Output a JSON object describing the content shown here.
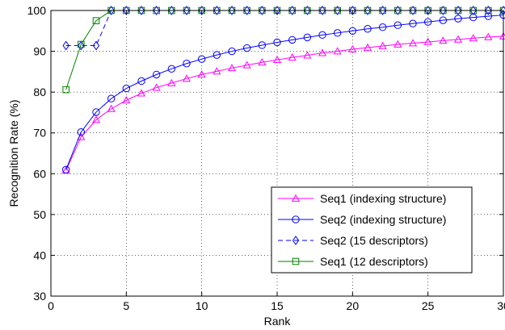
{
  "chart_data": {
    "type": "line",
    "xlabel": "Rank",
    "ylabel": "Recognition Rate (%)",
    "xlim": [
      0,
      30
    ],
    "ylim": [
      30,
      100
    ],
    "xticks": [
      "0",
      "5",
      "10",
      "15",
      "20",
      "25",
      "30"
    ],
    "yticks": [
      "30",
      "40",
      "50",
      "60",
      "70",
      "80",
      "90",
      "100"
    ],
    "grid": true,
    "legend_position": "lower-right",
    "series": [
      {
        "name": "Seq1 (indexing structure)",
        "color": "#ff00ff",
        "marker": "triangle",
        "line": "solid",
        "x": [
          1,
          2,
          3,
          4,
          5,
          6,
          7,
          8,
          9,
          10,
          11,
          12,
          13,
          14,
          15,
          16,
          17,
          18,
          19,
          20,
          21,
          22,
          23,
          24,
          25,
          26,
          27,
          28,
          29,
          30
        ],
        "values": [
          60.8,
          69.0,
          73.2,
          75.9,
          78.0,
          79.7,
          81.1,
          82.2,
          83.3,
          84.3,
          85.1,
          85.9,
          86.6,
          87.3,
          87.9,
          88.5,
          89.0,
          89.6,
          90.0,
          90.5,
          90.9,
          91.3,
          91.7,
          92.0,
          92.3,
          92.6,
          92.9,
          93.2,
          93.5,
          93.7
        ]
      },
      {
        "name": "Seq2 (indexing structure)",
        "color": "#0000ff",
        "marker": "circle",
        "line": "solid",
        "x": [
          1,
          2,
          3,
          4,
          5,
          6,
          7,
          8,
          9,
          10,
          11,
          12,
          13,
          14,
          15,
          16,
          17,
          18,
          19,
          20,
          21,
          22,
          23,
          24,
          25,
          26,
          27,
          28,
          29,
          30
        ],
        "values": [
          61.0,
          70.2,
          75.1,
          78.4,
          80.9,
          82.7,
          84.3,
          85.7,
          87.0,
          88.1,
          89.1,
          90.0,
          90.8,
          91.5,
          92.2,
          92.8,
          93.4,
          94.0,
          94.5,
          95.0,
          95.5,
          95.9,
          96.4,
          96.8,
          97.2,
          97.6,
          98.0,
          98.3,
          98.6,
          98.9
        ]
      },
      {
        "name": "Seq2 (15 descriptors)",
        "color": "#0000ff",
        "marker": "diamond",
        "line": "dashed",
        "x": [
          1,
          2,
          3,
          4,
          5,
          6,
          7,
          8,
          9,
          10,
          11,
          12,
          13,
          14,
          15,
          16,
          17,
          18,
          19,
          20,
          21,
          22,
          23,
          24,
          25,
          26,
          27,
          28,
          29,
          30
        ],
        "values": [
          91.4,
          91.4,
          91.4,
          100,
          100,
          100,
          100,
          100,
          100,
          100,
          100,
          100,
          100,
          100,
          100,
          100,
          100,
          100,
          100,
          100,
          100,
          100,
          100,
          100,
          100,
          100,
          100,
          100,
          100,
          100
        ]
      },
      {
        "name": "Seq1 (12 descriptors)",
        "color": "#008000",
        "marker": "square",
        "line": "solid",
        "x": [
          1,
          2,
          3,
          4,
          5,
          6,
          7,
          8,
          9,
          10,
          11,
          12,
          13,
          14,
          15,
          16,
          17,
          18,
          19,
          20,
          21,
          22,
          23,
          24,
          25,
          26,
          27,
          28,
          29,
          30
        ],
        "values": [
          80.6,
          91.7,
          97.5,
          100,
          100,
          100,
          100,
          100,
          100,
          100,
          100,
          100,
          100,
          100,
          100,
          100,
          100,
          100,
          100,
          100,
          100,
          100,
          100,
          100,
          100,
          100,
          100,
          100,
          100,
          100
        ]
      }
    ]
  }
}
